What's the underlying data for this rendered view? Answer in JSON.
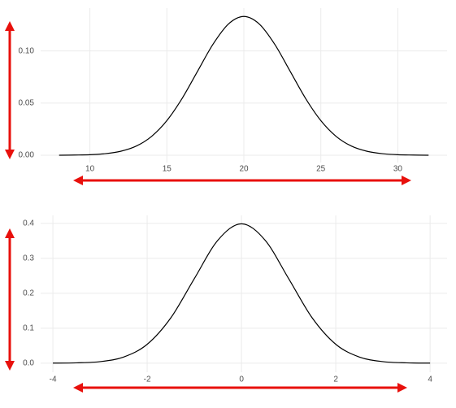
{
  "chart_data": [
    {
      "type": "line",
      "x": [
        8,
        9,
        10,
        11,
        12,
        13,
        14,
        15,
        16,
        17,
        18,
        19,
        20,
        21,
        22,
        23,
        24,
        25,
        26,
        27,
        28,
        29,
        30,
        31,
        32
      ],
      "series": [
        {
          "color": "#000000",
          "values": [
            0.0,
            0.0002,
            0.0005,
            0.0015,
            0.0038,
            0.0087,
            0.018,
            0.0332,
            0.0547,
            0.0807,
            0.1065,
            0.1258,
            0.133,
            0.1258,
            0.1065,
            0.0807,
            0.0547,
            0.0332,
            0.018,
            0.0087,
            0.0038,
            0.0015,
            0.0005,
            0.0002,
            0.0
          ]
        }
      ],
      "xlim": [
        6.8,
        33.2
      ],
      "xticks": [
        10,
        15,
        20,
        25,
        30
      ],
      "ylim": [
        -0.007,
        0.141
      ],
      "yticks": [
        {
          "value": 0,
          "label": "0.00"
        },
        {
          "value": 0.05,
          "label": "0.05"
        },
        {
          "value": 0.1,
          "label": "0.10"
        }
      ],
      "grid": true
    },
    {
      "type": "line",
      "x": [
        -4,
        -3.5,
        -3,
        -2.5,
        -2,
        -1.5,
        -1,
        -0.5,
        0,
        0.5,
        1,
        1.5,
        2,
        2.5,
        3,
        3.5,
        4
      ],
      "series": [
        {
          "color": "#000000",
          "values": [
            0.0001,
            0.0009,
            0.0044,
            0.0175,
            0.054,
            0.1295,
            0.242,
            0.3521,
            0.3989,
            0.3521,
            0.242,
            0.1295,
            0.054,
            0.0175,
            0.0044,
            0.0009,
            0.0001
          ]
        }
      ],
      "xlim": [
        -4.26,
        4.36
      ],
      "xticks": [
        -4,
        -2,
        0,
        2,
        4
      ],
      "ylim": [
        -0.026,
        0.423
      ],
      "yticks": [
        {
          "value": 0,
          "label": "0.0"
        },
        0.1,
        0.2,
        0.3,
        0.4
      ],
      "grid": true
    }
  ]
}
